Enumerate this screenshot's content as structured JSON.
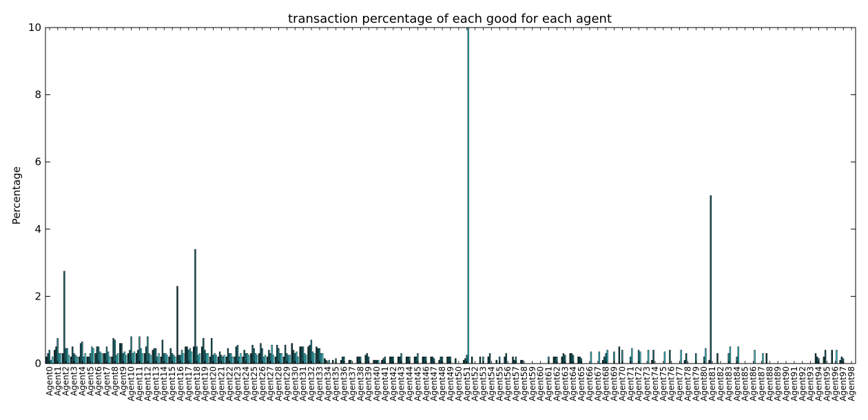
{
  "chart_data": {
    "type": "bar",
    "title": "transaction percentage of each good for each agent",
    "xlabel": "",
    "ylabel": "Percentage",
    "ylim": [
      0,
      10
    ],
    "yticks": [
      "0",
      "2",
      "4",
      "6",
      "8",
      "10"
    ],
    "grid": false,
    "legend": "none",
    "categories": [
      "Agent0",
      "Agent1",
      "Agent2",
      "Agent3",
      "Agent4",
      "Agent5",
      "Agent6",
      "Agent7",
      "Agent8",
      "Agent9",
      "Agent10",
      "Agent11",
      "Agent12",
      "Agent13",
      "Agent14",
      "Agent15",
      "Agent16",
      "Agent17",
      "Agent18",
      "Agent19",
      "Agent20",
      "Agent21",
      "Agent22",
      "Agent23",
      "Agent24",
      "Agent25",
      "Agent26",
      "Agent27",
      "Agent28",
      "Agent29",
      "Agent30",
      "Agent31",
      "Agent32",
      "Agent33",
      "Agent34",
      "Agent35",
      "Agent36",
      "Agent37",
      "Agent38",
      "Agent39",
      "Agent40",
      "Agent41",
      "Agent42",
      "Agent43",
      "Agent44",
      "Agent45",
      "Agent46",
      "Agent47",
      "Agent48",
      "Agent49",
      "Agent50",
      "Agent51",
      "Agent52",
      "Agent53",
      "Agent54",
      "Agent55",
      "Agent56",
      "Agent57",
      "Agent58",
      "Agent59",
      "Agent60",
      "Agent61",
      "Agent62",
      "Agent63",
      "Agent64",
      "Agent65",
      "Agent66",
      "Agent67",
      "Agent68",
      "Agent69",
      "Agent70",
      "Agent71",
      "Agent72",
      "Agent73",
      "Agent74",
      "Agent75",
      "Agent76",
      "Agent77",
      "Agent78",
      "Agent79",
      "Agent80",
      "Agent81",
      "Agent82",
      "Agent83",
      "Agent84",
      "Agent85",
      "Agent86",
      "Agent87",
      "Agent88",
      "Agent89",
      "Agent90",
      "Agent91",
      "Agent92",
      "Agent93",
      "Agent94",
      "Agent95",
      "Agent96",
      "Agent97",
      "Agent98"
    ],
    "series_colors": [
      "#0f3a3f",
      "#1a5c63",
      "#2a8a92",
      "#3cc0c8",
      "#55e3ea"
    ],
    "series": [
      {
        "values": [
          0.2,
          0.4,
          0.3,
          0.2,
          0.2,
          0.2,
          0.3,
          0.3,
          0.2,
          0.6,
          0.3,
          0.3,
          0.3,
          0.4,
          0.2,
          0.2,
          2.3,
          0.5,
          0.5,
          0.5,
          0.2,
          0.2,
          0.2,
          0.2,
          0.2,
          0.3,
          0.3,
          0.2,
          0.2,
          0.2,
          0.6,
          0.5,
          0.5,
          0.5,
          0.15,
          0.1,
          0.1,
          0.1,
          0.2,
          0.25,
          0.1,
          0.1,
          0.2,
          0.2,
          0.2,
          0.2,
          0.2,
          0.2,
          0.1,
          0.2,
          0.15,
          0.1,
          0.2,
          0.2,
          0.2,
          0.1,
          0.2,
          0.2,
          0.1,
          0.0,
          0.0,
          0.0,
          0.2,
          0.2,
          0.3,
          0.2,
          0.0,
          0.0,
          0.1,
          0.0,
          0.5,
          0.0,
          0.0,
          0.0,
          0.1,
          0.0,
          0.0,
          0.0,
          0.1,
          0.0,
          0.0,
          0.1,
          0.3,
          0.0,
          0.0,
          0.0,
          0.0,
          0.0,
          0.3,
          0.0,
          0.0,
          0.0,
          0.0,
          0.0,
          0.3,
          0.2,
          0.4,
          0.1,
          0.0
        ]
      },
      {
        "values": [
          0.3,
          0.5,
          2.75,
          0.5,
          0.6,
          0.2,
          0.5,
          0.3,
          0.75,
          0.6,
          0.4,
          0.4,
          0.5,
          0.45,
          0.7,
          0.45,
          0.25,
          0.5,
          3.4,
          0.75,
          0.75,
          0.35,
          0.45,
          0.5,
          0.4,
          0.55,
          0.6,
          0.4,
          0.55,
          0.55,
          0.4,
          0.5,
          0.55,
          0.45,
          0.1,
          0.0,
          0.2,
          0.1,
          0.2,
          0.3,
          0.1,
          0.15,
          0.2,
          0.2,
          0.2,
          0.2,
          0.2,
          0.2,
          0.2,
          0.2,
          0.0,
          0.15,
          0.0,
          0.0,
          0.3,
          0.0,
          0.3,
          0.1,
          0.1,
          0.0,
          0.0,
          0.0,
          0.2,
          0.3,
          0.3,
          0.2,
          0.0,
          0.0,
          0.2,
          0.0,
          0.0,
          0.0,
          0.0,
          0.0,
          0.4,
          0.0,
          0.4,
          0.0,
          0.3,
          0.0,
          0.0,
          5.0,
          0.0,
          0.0,
          0.0,
          0.0,
          0.0,
          0.0,
          0.0,
          0.0,
          0.0,
          0.0,
          0.0,
          0.0,
          0.2,
          0.4,
          0.0,
          0.2,
          0.0
        ]
      },
      {
        "values": [
          0.4,
          0.75,
          0.45,
          0.3,
          0.65,
          0.3,
          0.5,
          0.5,
          0.7,
          0.3,
          0.8,
          0.8,
          0.8,
          0.45,
          0.3,
          0.3,
          0.25,
          0.4,
          0.5,
          0.4,
          0.25,
          0.25,
          0.3,
          0.55,
          0.3,
          0.45,
          0.45,
          0.3,
          0.45,
          0.3,
          0.3,
          0.5,
          0.7,
          0.45,
          0.0,
          0.15,
          0.2,
          0.0,
          0.2,
          0.2,
          0.1,
          0.2,
          0.2,
          0.3,
          0.2,
          0.3,
          0.2,
          0.15,
          0.2,
          0.2,
          0.0,
          0.25,
          0.0,
          0.2,
          0.0,
          0.2,
          0.0,
          0.2,
          0.0,
          0.0,
          0.0,
          0.2,
          0.2,
          0.25,
          0.25,
          0.15,
          0.0,
          0.0,
          0.3,
          0.35,
          0.4,
          0.2,
          0.4,
          0.0,
          0.0,
          0.0,
          0.0,
          0.0,
          0.0,
          0.3,
          0.2,
          0.0,
          0.0,
          0.3,
          0.2,
          0.0,
          0.0,
          0.0,
          0.0,
          0.0,
          0.0,
          0.0,
          0.0,
          0.0,
          0.15,
          0.0,
          0.0,
          0.15,
          0.0
        ]
      },
      {
        "values": [
          0.1,
          0.3,
          0.45,
          0.25,
          0.2,
          0.5,
          0.35,
          0.35,
          0.25,
          0.35,
          0.3,
          0.45,
          0.3,
          0.2,
          0.3,
          0.25,
          0.4,
          0.45,
          0.25,
          0.3,
          0.3,
          0.2,
          0.3,
          0.2,
          0.3,
          0.3,
          0.2,
          0.55,
          0.3,
          0.25,
          0.35,
          0.3,
          0.35,
          0.3,
          0.1,
          0.0,
          0.0,
          0.0,
          0.0,
          0.0,
          0.1,
          0.0,
          0.0,
          0.0,
          0.0,
          0.0,
          0.0,
          0.0,
          0.0,
          0.0,
          0.0,
          10.0,
          0.0,
          0.0,
          0.0,
          0.0,
          0.0,
          0.0,
          0.0,
          0.0,
          0.0,
          0.0,
          0.0,
          0.0,
          0.0,
          0.0,
          0.35,
          0.35,
          0.4,
          0.0,
          0.0,
          0.45,
          0.35,
          0.4,
          0.0,
          0.35,
          0.0,
          0.4,
          0.0,
          0.0,
          0.45,
          0.0,
          0.0,
          0.5,
          0.5,
          0.0,
          0.4,
          0.3,
          0.0,
          0.0,
          0.0,
          0.0,
          0.0,
          0.0,
          0.0,
          0.0,
          0.4,
          0.0,
          0.0
        ]
      },
      {
        "values": [
          0.2,
          0.3,
          0.25,
          0.2,
          0.3,
          0.45,
          0.3,
          0.2,
          0.3,
          0.25,
          0.35,
          0.3,
          0.25,
          0.3,
          0.25,
          0.2,
          0.3,
          0.35,
          0.3,
          0.3,
          0.25,
          0.25,
          0.2,
          0.3,
          0.25,
          0.25,
          0.25,
          0.25,
          0.3,
          0.25,
          0.2,
          0.25,
          0.3,
          0.3,
          0.0,
          0.0,
          0.0,
          0.0,
          0.0,
          0.0,
          0.0,
          0.0,
          0.0,
          0.0,
          0.0,
          0.0,
          0.0,
          0.0,
          0.0,
          0.0,
          0.0,
          0.0,
          0.0,
          0.0,
          0.0,
          0.0,
          0.0,
          0.0,
          0.0,
          0.0,
          0.0,
          0.0,
          0.0,
          0.0,
          0.0,
          0.0,
          0.0,
          0.0,
          0.0,
          0.0,
          0.0,
          0.0,
          0.0,
          0.0,
          0.0,
          0.0,
          0.0,
          0.0,
          0.0,
          0.0,
          0.0,
          0.0,
          0.0,
          0.0,
          0.0,
          0.0,
          0.0,
          0.0,
          0.0,
          0.0,
          0.0,
          0.0,
          0.0,
          0.0,
          0.0,
          0.0,
          0.0,
          0.0,
          0.0
        ]
      }
    ]
  }
}
